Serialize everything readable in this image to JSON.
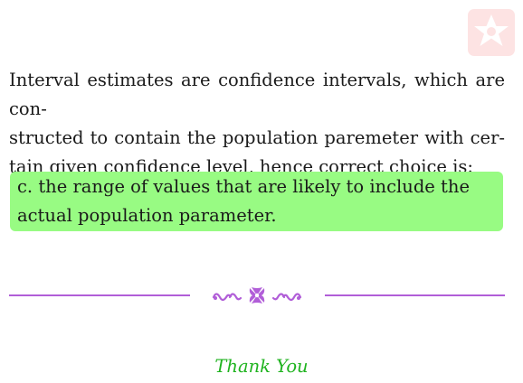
{
  "explanation": {
    "lines": [
      "Interval estimates are confidence intervals, which are con-",
      "structed to contain the population paremeter with cer-",
      "tain given confidence level, hence correct choice is:"
    ]
  },
  "answer": {
    "lines": [
      "c.  the range of values that are likely to include the",
      "actual population parameter."
    ]
  },
  "closing": {
    "text": "Thank You"
  },
  "colors": {
    "answer_background": "#98fb83",
    "divider": "#b15ed8",
    "closing_text": "#1fb31f",
    "logo": "#fde3e3"
  },
  "icons": {
    "logo": "star-badge-icon",
    "ornament": "floral-ornament-icon"
  }
}
